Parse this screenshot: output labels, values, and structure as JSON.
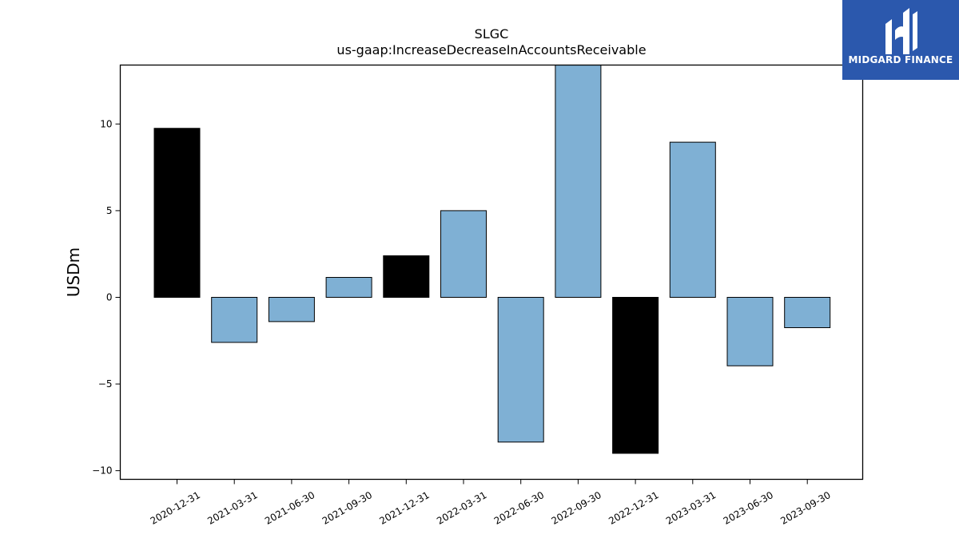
{
  "brand": {
    "name": "MIDGARD FINANCE",
    "color": "#2b58ad"
  },
  "chart_data": {
    "type": "bar",
    "title": "SLGC",
    "subtitle": "us-gaap:IncreaseDecreaseInAccountsReceivable",
    "xlabel": "",
    "ylabel": "USDm",
    "ylim": [
      -10.5,
      13.4
    ],
    "yticks": [
      10,
      5,
      0,
      -5,
      -10
    ],
    "ytick_labels": [
      "10",
      "5",
      "0",
      "−5",
      "−10"
    ],
    "grid": false,
    "categories": [
      "2020-12-31",
      "2021-03-31",
      "2021-06-30",
      "2021-09-30",
      "2021-12-31",
      "2022-03-31",
      "2022-06-30",
      "2022-09-30",
      "2022-12-31",
      "2023-03-31",
      "2023-06-30",
      "2023-09-30"
    ],
    "values": [
      9.75,
      -2.6,
      -1.4,
      1.15,
      2.4,
      5.0,
      -8.35,
      13.4,
      -9.0,
      8.95,
      -3.95,
      -1.75
    ],
    "bar_colors": [
      "#000000",
      "#7fb0d4",
      "#7fb0d4",
      "#7fb0d4",
      "#000000",
      "#7fb0d4",
      "#7fb0d4",
      "#7fb0d4",
      "#000000",
      "#7fb0d4",
      "#7fb0d4",
      "#7fb0d4"
    ]
  }
}
